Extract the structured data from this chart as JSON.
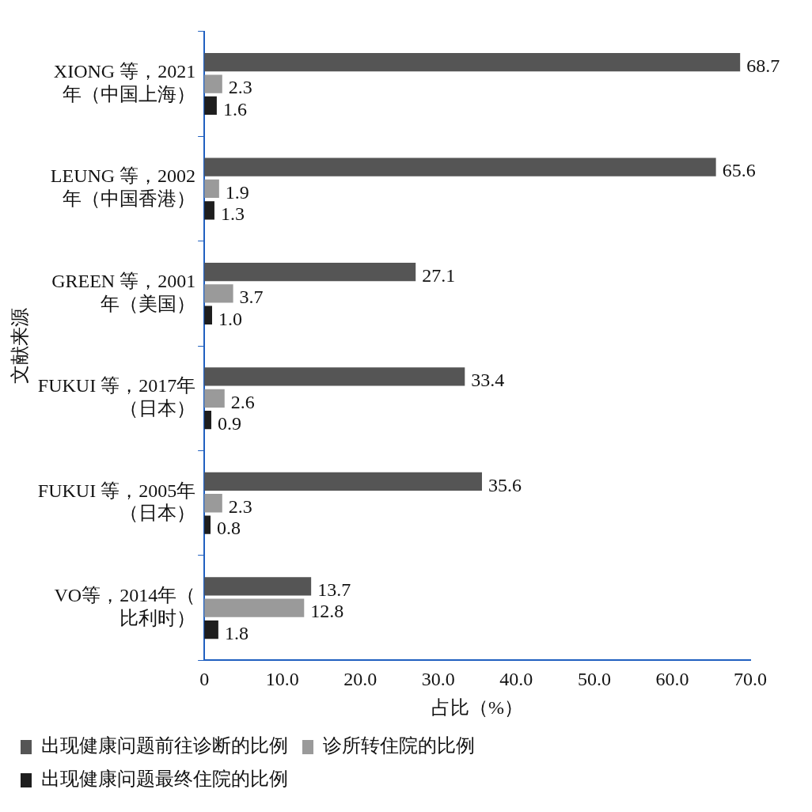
{
  "chart_data": {
    "type": "bar",
    "orientation": "horizontal",
    "xlabel": "占比（%）",
    "ylabel": "文献来源",
    "categories": [
      "XIONG 等，2021年（中国上海）",
      "LEUNG 等，2002年（中国香港）",
      "GREEN 等，2001年（美国）",
      "FUKUI 等，2017年（日本）",
      "FUKUI 等，2005年（日本）",
      "VO等，2014年（比利时）"
    ],
    "series": [
      {
        "name": "出现健康问题前往诊断的比例",
        "color": "#555555",
        "values": [
          68.7,
          65.6,
          27.1,
          33.4,
          35.6,
          13.7
        ],
        "value_labels": [
          "68.7",
          "65.6",
          "27.1",
          "33.4",
          "35.6",
          "13.7"
        ]
      },
      {
        "name": "诊所转住院的比例",
        "color": "#9a9a9a",
        "values": [
          2.3,
          1.9,
          3.7,
          2.6,
          2.3,
          12.8
        ],
        "value_labels": [
          "2.3",
          "1.9",
          "3.7",
          "2.6",
          "2.3",
          "12.8"
        ]
      },
      {
        "name": "出现健康问题最终住院的比例",
        "color": "#1e1e1e",
        "values": [
          1.6,
          1.3,
          1.0,
          0.9,
          0.8,
          1.8
        ],
        "value_labels": [
          "1.6",
          "1.3",
          "1.0",
          "0.9",
          "0.8",
          "1.8"
        ]
      }
    ],
    "xlim": [
      0,
      70
    ],
    "xticks": [
      0,
      {
        "value": 10,
        "label": "10.0"
      },
      {
        "value": 20,
        "label": "20.0"
      },
      {
        "value": 30,
        "label": "30.0"
      },
      {
        "value": 40,
        "label": "40.0"
      },
      {
        "value": 50,
        "label": "50.0"
      },
      {
        "value": 60,
        "label": "60.0"
      },
      {
        "value": 70,
        "label": "70.0"
      }
    ],
    "grid": false,
    "legend": "bottom"
  }
}
